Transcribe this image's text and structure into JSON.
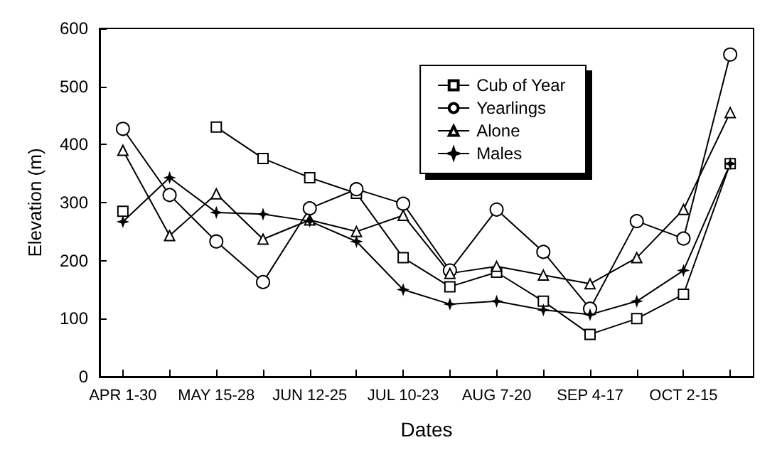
{
  "chart_data": {
    "type": "line",
    "xlabel": "Dates",
    "ylabel": "Elevation (m)",
    "categories": [
      "APR 1-30",
      null,
      "MAY 15-28",
      null,
      "JUN 12-25",
      null,
      "JUL 10-23",
      null,
      "AUG 7-20",
      null,
      "SEP 4-17",
      null,
      "OCT 2-15",
      null
    ],
    "series": [
      {
        "name": "Cub of Year",
        "color": "#000000",
        "marker": "square",
        "values": [
          285,
          null,
          430,
          376,
          343,
          316,
          205,
          155,
          180,
          130,
          73,
          100,
          142,
          367
        ]
      },
      {
        "name": "Yearlings",
        "color": "#000000",
        "marker": "circle",
        "values": [
          427,
          313,
          233,
          163,
          290,
          323,
          298,
          183,
          288,
          215,
          117,
          268,
          238,
          555
        ]
      },
      {
        "name": "Alone",
        "color": "#000000",
        "marker": "triangle",
        "values": [
          390,
          243,
          315,
          237,
          270,
          250,
          278,
          178,
          190,
          175,
          160,
          205,
          288,
          455
        ]
      },
      {
        "name": "Males",
        "color": "#000000",
        "marker": "star",
        "values": [
          267,
          343,
          283,
          280,
          268,
          233,
          150,
          125,
          130,
          115,
          107,
          130,
          183,
          367
        ]
      }
    ],
    "ylim": [
      0,
      600
    ],
    "yticks": [
      0,
      100,
      200,
      300,
      400,
      500,
      600
    ],
    "grid": false,
    "legend": "top right",
    "line_style": "solid"
  }
}
